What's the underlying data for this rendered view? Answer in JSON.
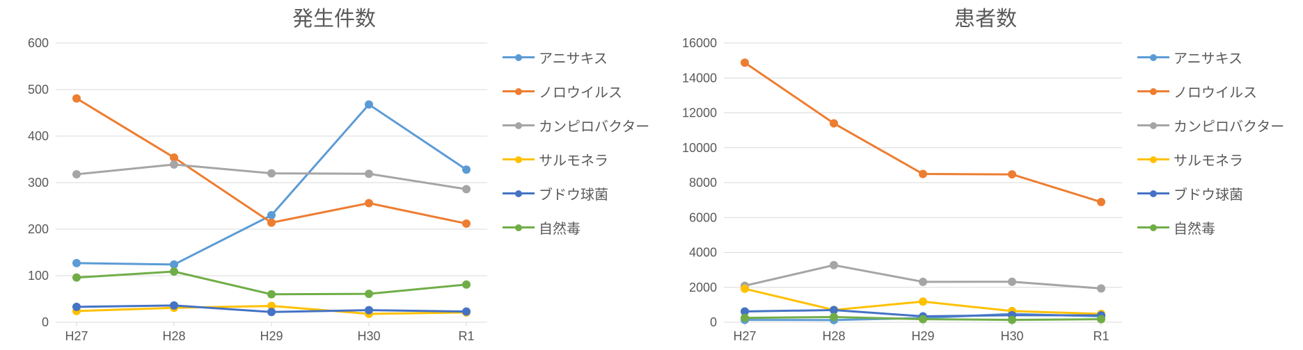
{
  "categories": [
    "H27",
    "H28",
    "H29",
    "H30",
    "R1"
  ],
  "series_meta": [
    {
      "key": "anisakis",
      "label": "アニサキス",
      "color": "#5b9bd5"
    },
    {
      "key": "norovirus",
      "label": "ノロウイルス",
      "color": "#ed7d31"
    },
    {
      "key": "campylobacter",
      "label": "カンピロバクター",
      "color": "#a5a5a5"
    },
    {
      "key": "salmonella",
      "label": "サルモネラ",
      "color": "#ffc000"
    },
    {
      "key": "staph",
      "label": "ブドウ球菌",
      "color": "#4472c4"
    },
    {
      "key": "natural",
      "label": "自然毒",
      "color": "#70ad47"
    }
  ],
  "charts": [
    {
      "id": "cases",
      "title": "発生件数",
      "ylim": [
        0,
        600
      ],
      "ytick_step": 100,
      "background_color": "#ffffff",
      "grid_color": "#d9d9d9",
      "axis_text_color": "#595959",
      "title_fontsize": 30,
      "axis_fontsize": 18,
      "line_width": 3,
      "marker_radius": 6,
      "data": {
        "anisakis": [
          127,
          124,
          230,
          468,
          328
        ],
        "norovirus": [
          481,
          354,
          214,
          256,
          212
        ],
        "campylobacter": [
          318,
          339,
          320,
          319,
          286
        ],
        "salmonella": [
          24,
          31,
          35,
          18,
          21
        ],
        "staph": [
          33,
          36,
          22,
          26,
          23
        ],
        "natural": [
          96,
          109,
          60,
          61,
          81
        ]
      }
    },
    {
      "id": "patients",
      "title": "患者数",
      "ylim": [
        0,
        16000
      ],
      "ytick_step": 2000,
      "background_color": "#ffffff",
      "grid_color": "#d9d9d9",
      "axis_text_color": "#595959",
      "title_fontsize": 30,
      "axis_fontsize": 18,
      "line_width": 3,
      "marker_radius": 6,
      "data": {
        "anisakis": [
          133,
          126,
          242,
          478,
          336
        ],
        "norovirus": [
          14876,
          11397,
          8496,
          8475,
          6889
        ],
        "campylobacter": [
          2089,
          3272,
          2315,
          2319,
          1937
        ],
        "salmonella": [
          1918,
          704,
          1183,
          640,
          476
        ],
        "staph": [
          619,
          698,
          336,
          405,
          393
        ],
        "natural": [
          247,
          300,
          176,
          133,
          172
        ]
      }
    }
  ]
}
